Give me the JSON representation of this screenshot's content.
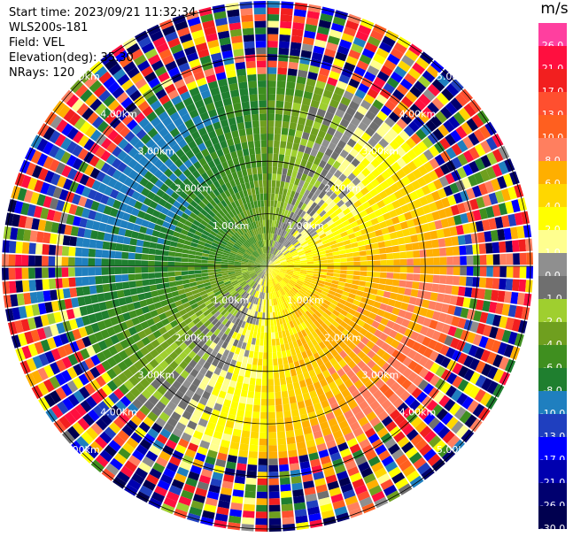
{
  "header": {
    "start_time": "Start time: 2023/09/21 11:32:34",
    "instrument": "WLS200s-181",
    "field": "Field: VEL",
    "elevation": "Elevation(deg): 35.30",
    "nrays": "NRays: 120"
  },
  "colorbar": {
    "unit": "m/s",
    "entries": [
      {
        "label": "26.0",
        "color": "#ff3f9f"
      },
      {
        "label": "21.0",
        "color": "#ff0f3f"
      },
      {
        "label": "17.0",
        "color": "#f21f1f"
      },
      {
        "label": "13.0",
        "color": "#ff4f2f"
      },
      {
        "label": "10.0",
        "color": "#ff5f1f"
      },
      {
        "label": "8.0",
        "color": "#ff7f5f"
      },
      {
        "label": "6.0",
        "color": "#ffaf00"
      },
      {
        "label": "4.0",
        "color": "#ffd700"
      },
      {
        "label": "2.0",
        "color": "#ffff00"
      },
      {
        "label": "1.0",
        "color": "#ffff8f"
      },
      {
        "label": "0.0",
        "color": "#8f8f8f"
      },
      {
        "label": "-1.0",
        "color": "#6f6f6f"
      },
      {
        "label": "-2.0",
        "color": "#9fcf2f"
      },
      {
        "label": "-4.0",
        "color": "#6f9f1f"
      },
      {
        "label": "-6.0",
        "color": "#3f8f1f"
      },
      {
        "label": "-8.0",
        "color": "#1f7f2f"
      },
      {
        "label": "-10.0",
        "color": "#1f7fbf"
      },
      {
        "label": "-13.0",
        "color": "#1f3fbf"
      },
      {
        "label": "-17.0",
        "color": "#0000ff"
      },
      {
        "label": "-21.0",
        "color": "#0000af"
      },
      {
        "label": "-26.0",
        "color": "#00006f"
      },
      {
        "label": "-30.0",
        "color": "#00004f"
      }
    ]
  },
  "ppi": {
    "ring_labels": [
      "1.00km",
      "2.00km",
      "3.00km",
      "4.00km",
      "5.00km"
    ],
    "max_range_km": 5
  }
}
